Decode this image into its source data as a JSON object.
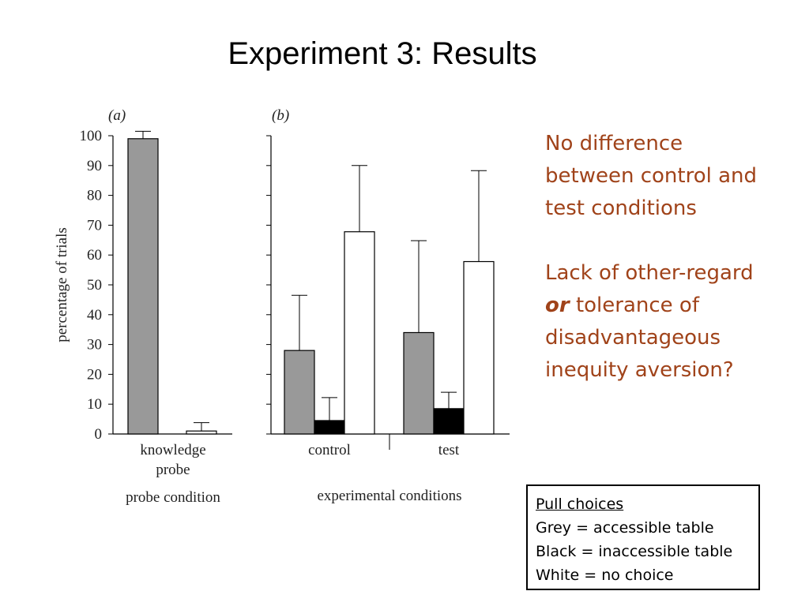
{
  "title": "Experiment 3: Results",
  "chart_data": [
    {
      "type": "bar",
      "panel_label": "(a)",
      "categories": [
        "knowledge\nprobe"
      ],
      "series": [
        {
          "color": "#999999",
          "values": [
            99
          ],
          "error_upper": [
            101.5
          ]
        },
        {
          "color": "#ffffff",
          "values": [
            1
          ],
          "error_upper": [
            3.8
          ]
        }
      ],
      "xlabel": "probe condition",
      "ylabel": "percentage of trials",
      "ylim": [
        0,
        100
      ],
      "yticks": [
        0,
        10,
        20,
        30,
        40,
        50,
        60,
        70,
        80,
        90,
        100
      ]
    },
    {
      "type": "bar",
      "panel_label": "(b)",
      "categories": [
        "control",
        "test"
      ],
      "series": [
        {
          "color": "#999999",
          "values": [
            28,
            34
          ],
          "error_upper": [
            46.5,
            64.8
          ]
        },
        {
          "color": "#000000",
          "values": [
            4.5,
            8.5
          ],
          "error_upper": [
            12.2,
            14
          ]
        },
        {
          "color": "#ffffff",
          "values": [
            67.8,
            57.8
          ],
          "error_upper": [
            90,
            88.3
          ]
        }
      ],
      "xlabel": "experimental conditions",
      "ylim": [
        0,
        100
      ]
    }
  ],
  "notes": {
    "line1": "No difference",
    "line2": "between control and",
    "line3": "test conditions",
    "line4": "Lack of other-regard",
    "line5_em": "or",
    "line5_rest": " tolerance of",
    "line6": "disadvantageous",
    "line7": "inequity aversion?"
  },
  "legend": {
    "title": "Pull choices",
    "items": [
      "Grey = accessible table",
      "Black = inaccessible table",
      "White = no choice"
    ]
  }
}
